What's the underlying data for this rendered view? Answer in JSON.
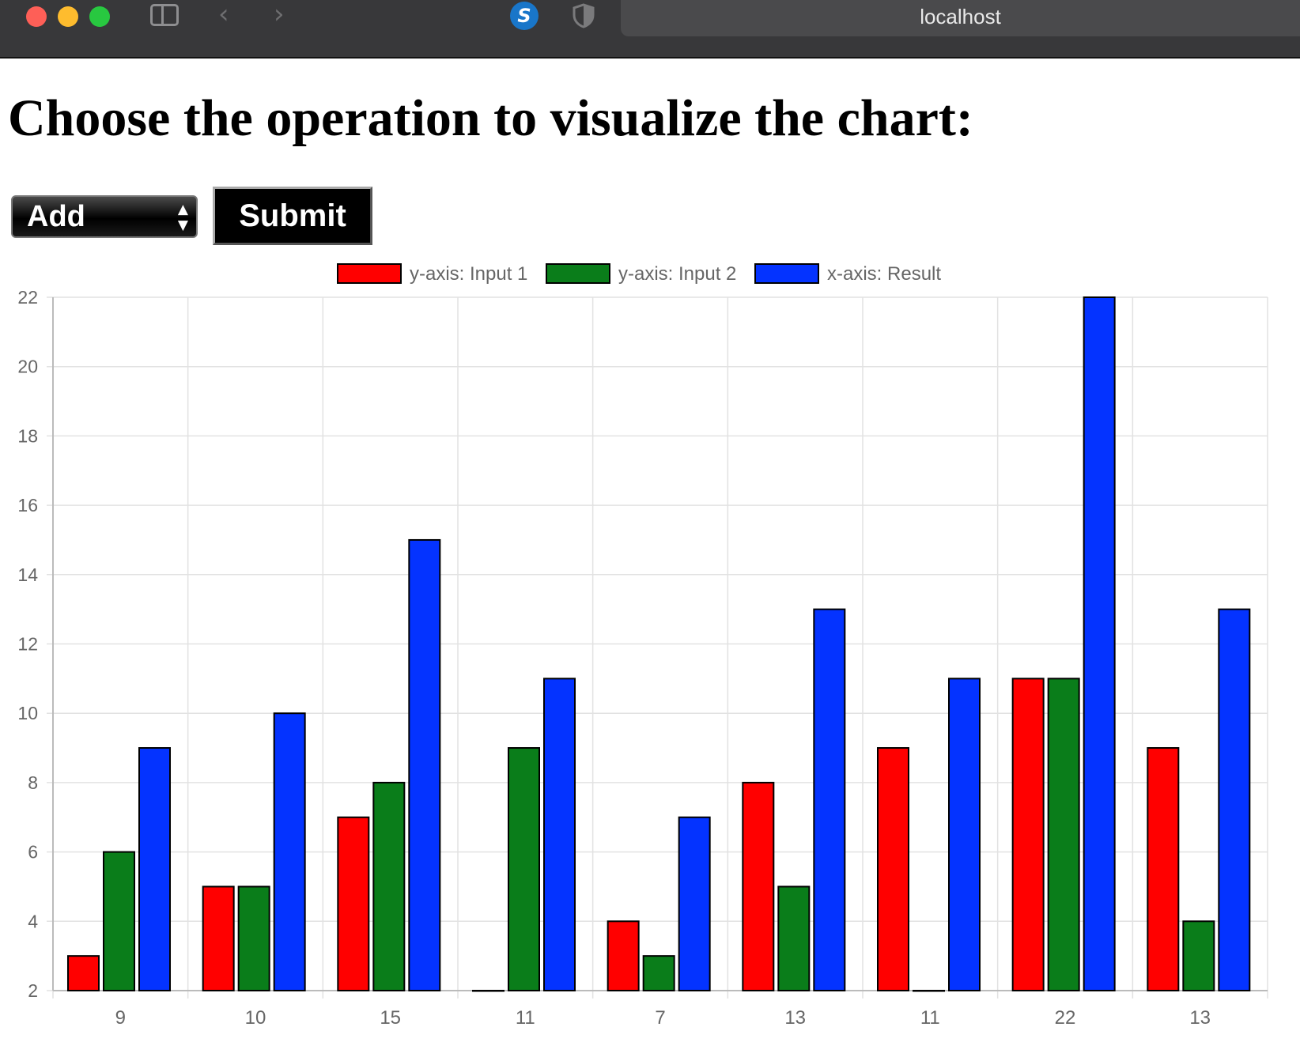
{
  "browser": {
    "address": "localhost"
  },
  "page": {
    "title": "Choose the operation to visualize the chart:",
    "operation_select": {
      "value": "Add"
    },
    "submit_label": "Submit"
  },
  "chart_data": {
    "type": "bar",
    "categories": [
      "9",
      "10",
      "15",
      "11",
      "7",
      "13",
      "11",
      "22",
      "13"
    ],
    "series": [
      {
        "name": "y-axis: Input 1",
        "color": "#ff0000",
        "values": [
          3,
          5,
          7,
          2,
          4,
          8,
          9,
          11,
          9
        ]
      },
      {
        "name": "y-axis: Input 2",
        "color": "#0a7d1a",
        "values": [
          6,
          5,
          8,
          9,
          3,
          5,
          2,
          11,
          4
        ]
      },
      {
        "name": "x-axis: Result",
        "color": "#0433ff",
        "values": [
          9,
          10,
          15,
          11,
          7,
          13,
          11,
          22,
          13
        ]
      }
    ],
    "yticks": [
      "2",
      "4",
      "6",
      "8",
      "10",
      "12",
      "14",
      "16",
      "18",
      "20",
      "22"
    ],
    "ylim": [
      2,
      22
    ],
    "grid": true,
    "legend": "top-center"
  }
}
